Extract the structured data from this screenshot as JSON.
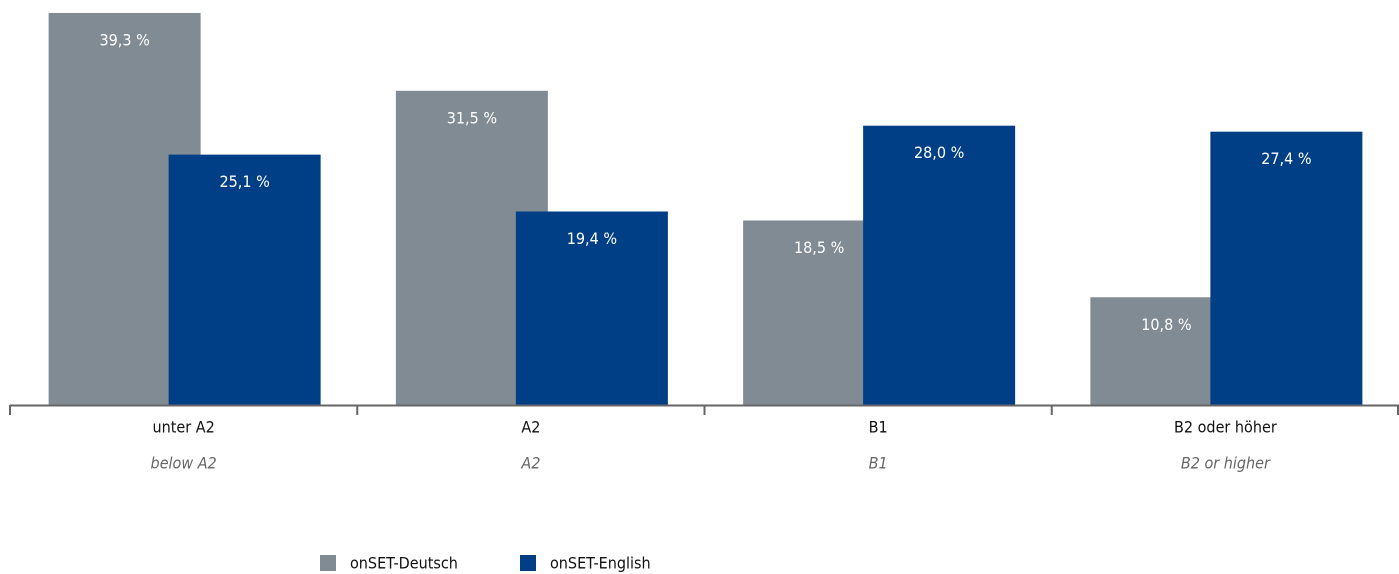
{
  "chart_data": {
    "type": "bar",
    "categories": [
      "unter A2",
      "A2",
      "B1",
      "B2 oder höher"
    ],
    "category_translations": [
      "below A2",
      "A2",
      "B1",
      "B2 or higher"
    ],
    "series": [
      {
        "name": "onSET-Deutsch",
        "color": "#808b94",
        "values": [
          39.3,
          31.5,
          18.5,
          10.8
        ],
        "value_labels": [
          "39,3 %",
          "31,5 %",
          "18,5 %",
          "10,8 %"
        ]
      },
      {
        "name": "onSET-English",
        "color": "#003f85",
        "values": [
          25.1,
          19.4,
          28.0,
          27.4
        ],
        "value_labels": [
          "25,1 %",
          "19,4 %",
          "28,0 %",
          "27,4 %"
        ]
      }
    ],
    "ylim": [
      0,
      40
    ]
  }
}
